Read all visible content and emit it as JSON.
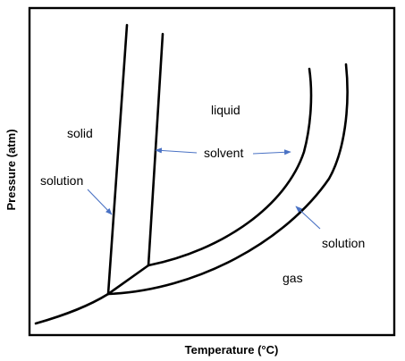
{
  "axes": {
    "x_title": "Temperature (°C)",
    "y_title": "Pressure (atm)"
  },
  "regions": {
    "solid": "solid",
    "liquid": "liquid",
    "gas": "gas"
  },
  "annotations": {
    "solution_left": "solution",
    "solvent": "solvent",
    "solution_right": "solution"
  },
  "colors": {
    "curve": "#000000",
    "pointer": "#4a72c4",
    "frame": "#000000",
    "background": "#ffffff"
  }
}
